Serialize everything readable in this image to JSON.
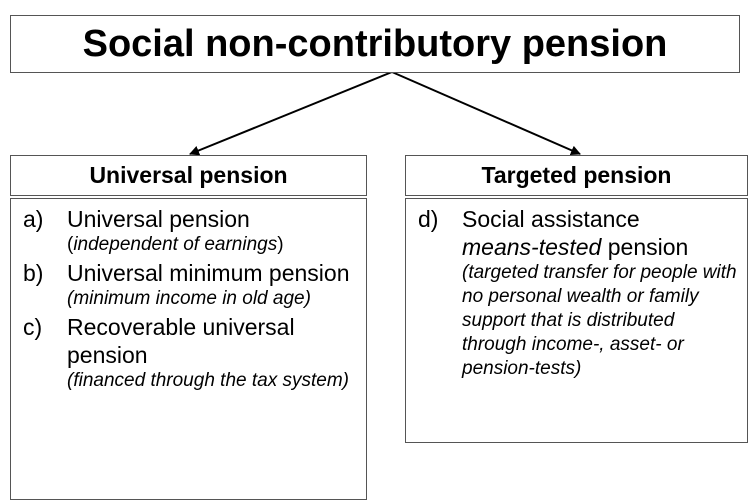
{
  "title": "Social non-contributory pension",
  "columns": [
    {
      "header": "Universal pension",
      "items": [
        {
          "marker": "a)",
          "lines": [
            {
              "kind": "main",
              "segments": [
                {
                  "text": "Universal pension",
                  "italic": false
                }
              ]
            },
            {
              "kind": "note",
              "segments": [
                {
                  "text": "(",
                  "italic": false
                },
                {
                  "text": "independent of earnings",
                  "italic": true
                },
                {
                  "text": ")",
                  "italic": false
                }
              ]
            }
          ]
        },
        {
          "marker": "b)",
          "lines": [
            {
              "kind": "main",
              "segments": [
                {
                  "text": "Universal minimum pension",
                  "italic": false
                }
              ]
            },
            {
              "kind": "note",
              "segments": [
                {
                  "text": "(minimum income in old age)",
                  "italic": true
                }
              ]
            }
          ]
        },
        {
          "marker": "c)",
          "lines": [
            {
              "kind": "main",
              "segments": [
                {
                  "text": "Recoverable universal pension",
                  "italic": false
                }
              ]
            },
            {
              "kind": "note",
              "segments": [
                {
                  "text": "(financed through the tax system)",
                  "italic": true
                }
              ]
            }
          ]
        }
      ]
    },
    {
      "header": "Targeted pension",
      "items": [
        {
          "marker": "d)",
          "lines": [
            {
              "kind": "main",
              "segments": [
                {
                  "text": "Social assistance",
                  "italic": false
                }
              ]
            },
            {
              "kind": "main",
              "segments": [
                {
                  "text": "means-tested",
                  "italic": true
                },
                {
                  "text": " pension",
                  "italic": false
                }
              ]
            },
            {
              "kind": "note",
              "segments": [
                {
                  "text": "(targeted transfer for people with no personal wealth or family support that is distributed through income-, asset- or pension-tests)",
                  "italic": true
                }
              ]
            }
          ]
        }
      ]
    }
  ]
}
